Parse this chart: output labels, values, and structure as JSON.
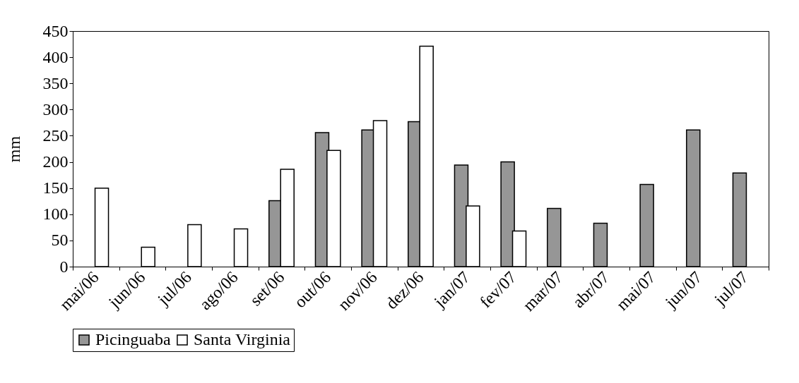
{
  "chart_data": {
    "type": "bar",
    "ylabel": "mm",
    "categories": [
      "mai/06",
      "jun/06",
      "jul/06",
      "ago/06",
      "set/06",
      "out/06",
      "nov/06",
      "dez/06",
      "jan/07",
      "fev/07",
      "mar/07",
      "abr/07",
      "mai/07",
      "jun/07",
      "jul/07"
    ],
    "series": [
      {
        "name": "Picinguaba",
        "color": "#969696",
        "values": [
          null,
          null,
          null,
          null,
          126,
          256,
          261,
          277,
          194,
          200,
          111,
          83,
          157,
          261,
          179
        ]
      },
      {
        "name": "Santa Virginia",
        "color": "#ffffff",
        "values": [
          150,
          37,
          80,
          72,
          186,
          222,
          279,
          421,
          116,
          68,
          null,
          null,
          null,
          null,
          null
        ]
      }
    ],
    "ylim": [
      0,
      450
    ],
    "yticks": [
      0,
      50,
      100,
      150,
      200,
      250,
      300,
      350,
      400,
      450
    ],
    "grid": false,
    "legend": "bottom"
  }
}
